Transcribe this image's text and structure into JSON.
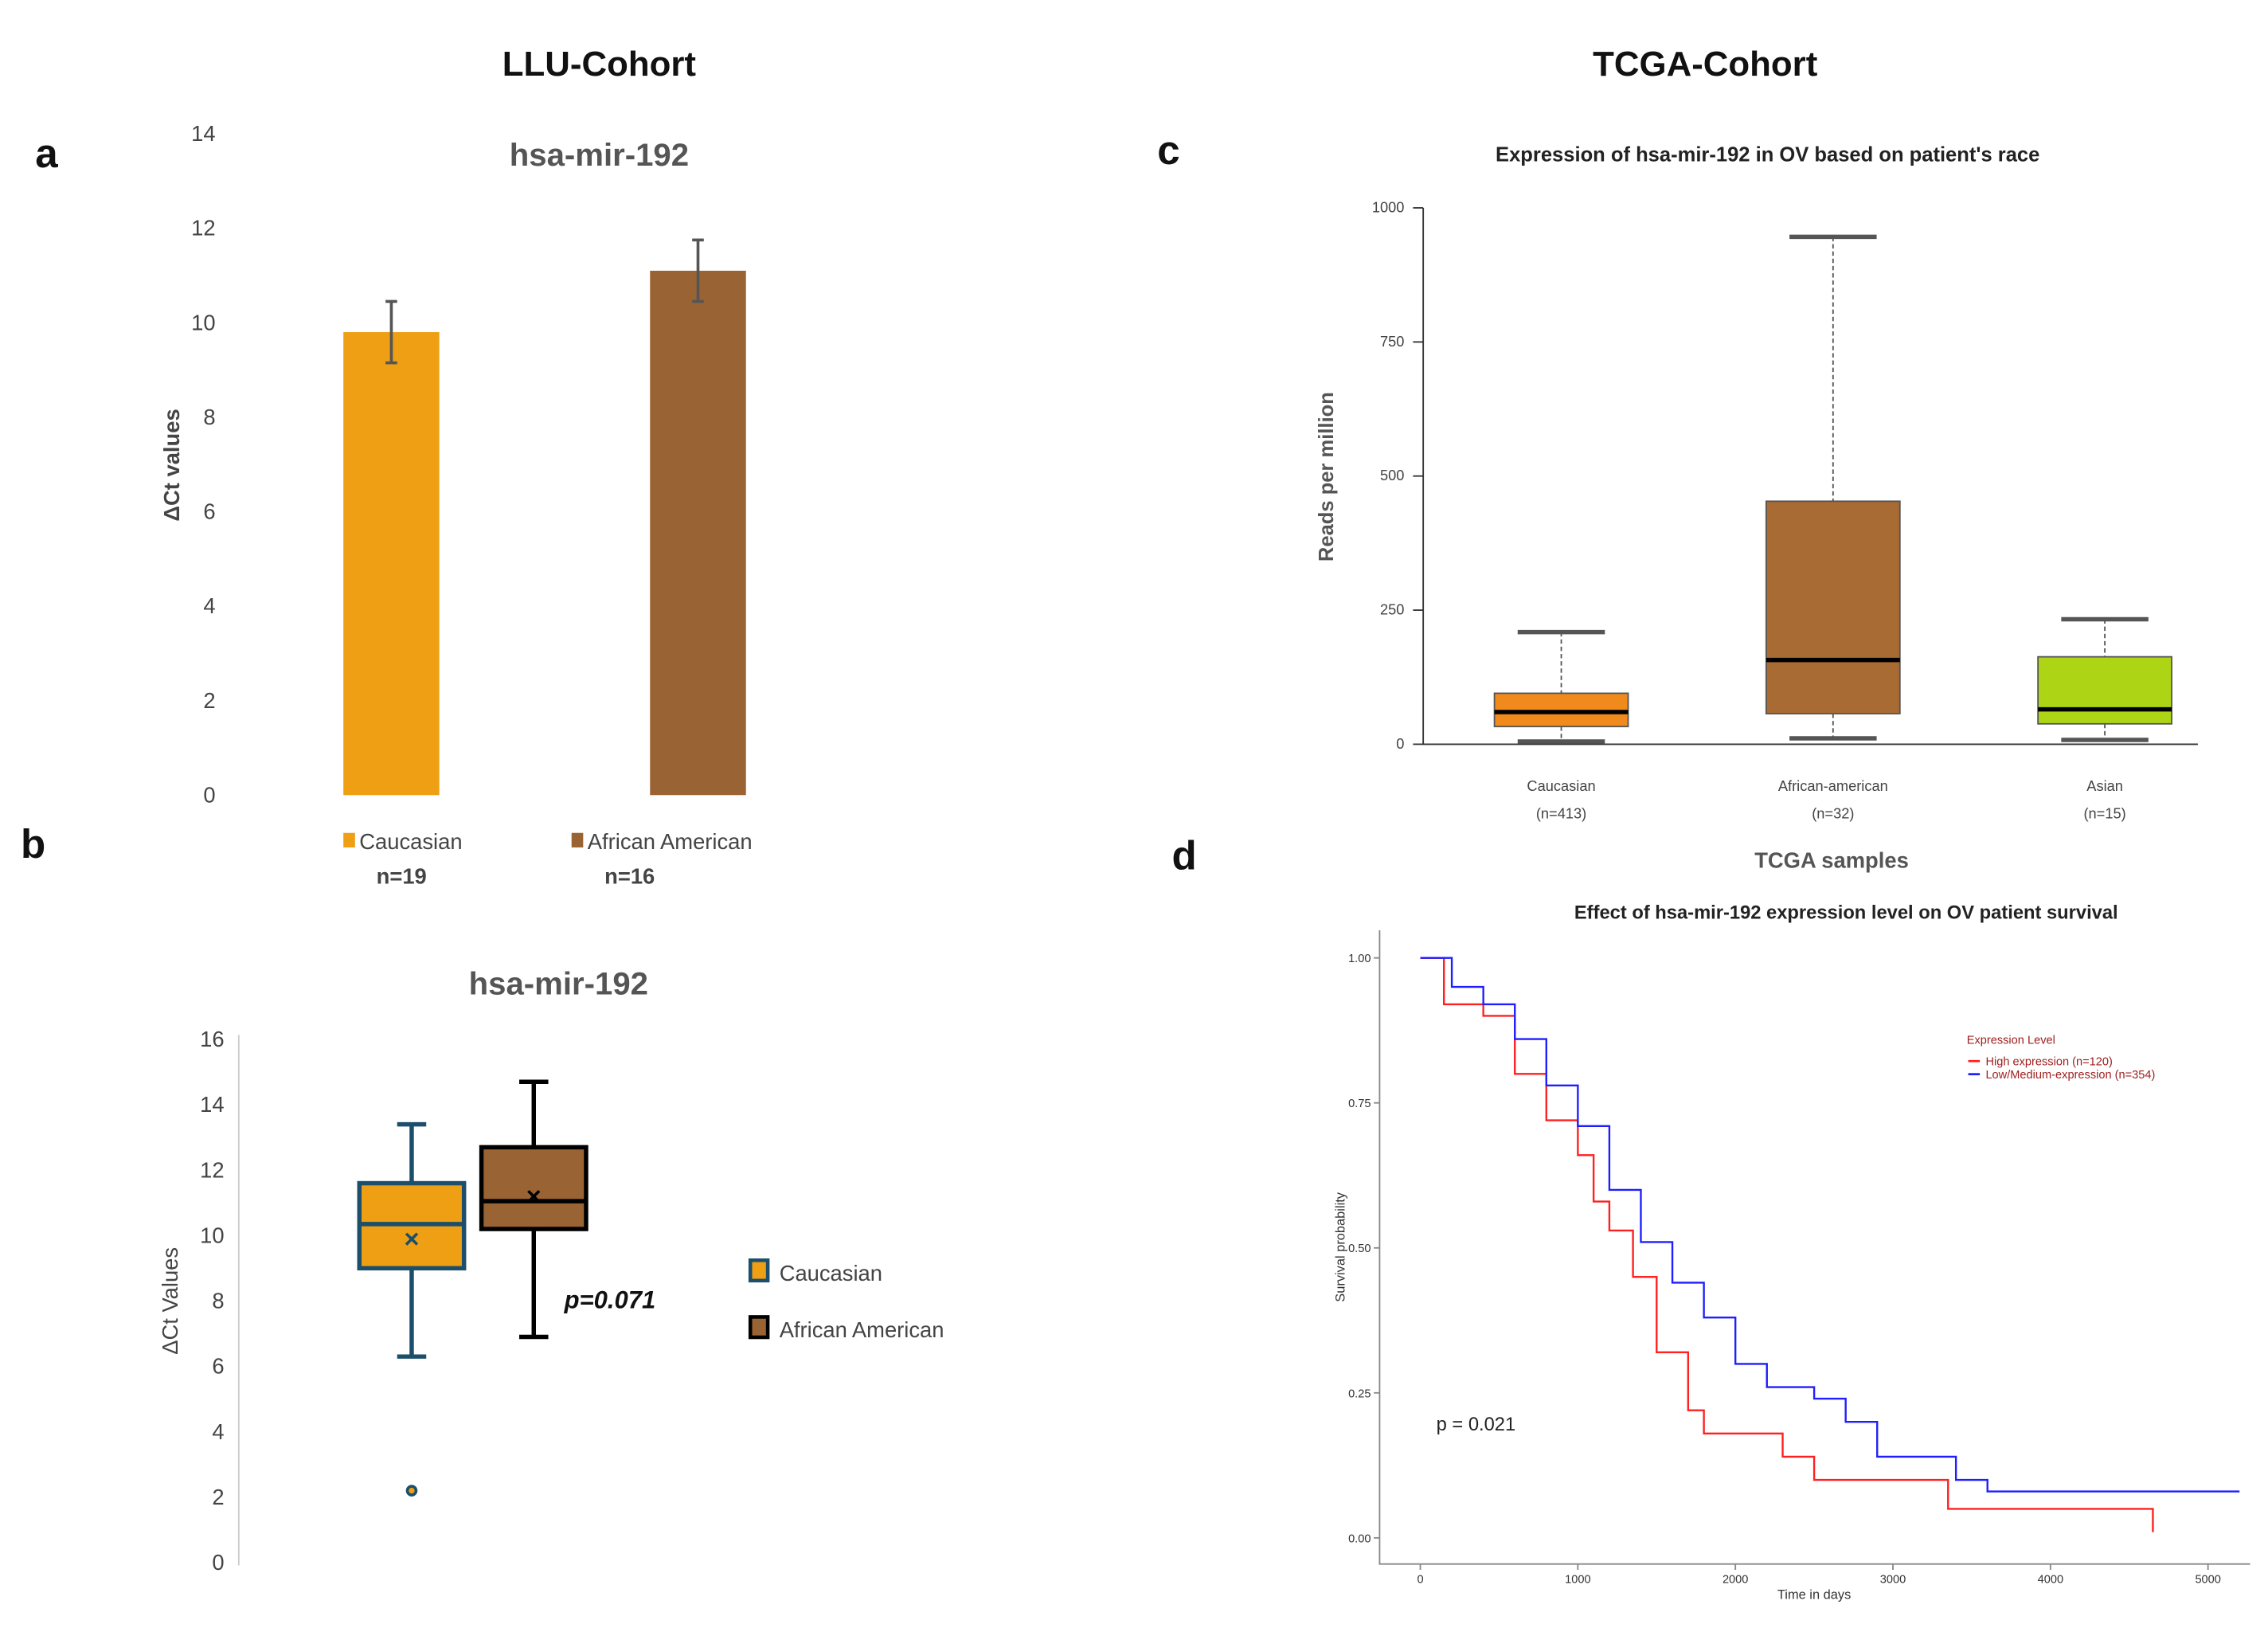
{
  "headers": {
    "left": "LLU-Cohort",
    "right": "TCGA-Cohort"
  },
  "panel_letters": {
    "a": "a",
    "b": "b",
    "c": "c",
    "d": "d"
  },
  "chart_data": [
    {
      "panel": "a",
      "type": "bar",
      "title": "hsa-mir-192",
      "ylabel": "ΔCt values",
      "ylim": [
        0,
        14
      ],
      "yticks": [
        0,
        2,
        4,
        6,
        8,
        10,
        12,
        14
      ],
      "categories": [
        "Caucasian",
        "African American"
      ],
      "values": [
        9.8,
        11.1
      ],
      "errors": [
        0.65,
        0.65
      ],
      "sample_sizes": [
        "n=19",
        "n=16"
      ],
      "colors": [
        "#EE9F14",
        "#9A6333"
      ],
      "grid": false,
      "legend": "bottom"
    },
    {
      "panel": "b",
      "type": "box",
      "title": "hsa-mir-192",
      "ylabel": "ΔCt Values",
      "ylim": [
        0,
        16
      ],
      "yticks": [
        0,
        2,
        4,
        6,
        8,
        10,
        12,
        14,
        16
      ],
      "series": [
        {
          "name": "Caucasian",
          "min": 6.3,
          "q1": 9.0,
          "median": 10.35,
          "q3": 11.6,
          "max": 13.4,
          "mean": 9.9,
          "outliers": [
            2.2
          ],
          "fill": "#EE9F14",
          "stroke": "#1B4F6B"
        },
        {
          "name": "African American",
          "min": 6.9,
          "q1": 10.2,
          "median": 11.05,
          "q3": 12.7,
          "max": 14.7,
          "mean": 11.2,
          "outliers": [],
          "fill": "#9A6333",
          "stroke": "#000000"
        }
      ],
      "annotation": "p=0.071",
      "grid": false,
      "legend": "right"
    },
    {
      "panel": "c",
      "type": "box",
      "title": "Expression of hsa-mir-192 in OV based on patient's race",
      "xlabel": "TCGA samples",
      "ylabel": "Reads per million",
      "ylim": [
        0,
        1000
      ],
      "yticks": [
        0,
        250,
        500,
        750,
        1000
      ],
      "series": [
        {
          "name": "Caucasian",
          "n": "(n=413)",
          "min": 5,
          "q1": 33,
          "median": 60,
          "q3": 95,
          "max": 209,
          "fill": "#F08A1C"
        },
        {
          "name": "African-american",
          "n": "(n=32)",
          "min": 11,
          "q1": 57,
          "median": 157,
          "q3": 453,
          "max": 946,
          "fill": "#A86B33"
        },
        {
          "name": "Asian",
          "n": "(n=15)",
          "min": 8,
          "q1": 38,
          "median": 65,
          "q3": 163,
          "max": 233,
          "fill": "#ADD516"
        }
      ],
      "grid": false
    },
    {
      "panel": "d",
      "type": "line",
      "title": "Effect of hsa-mir-192 expression level on OV patient survival",
      "xlabel": "Time in days",
      "ylabel": "Survival probability",
      "xlim": [
        0,
        5200
      ],
      "ylim": [
        0,
        1
      ],
      "xticks": [
        0,
        1000,
        2000,
        3000,
        4000,
        5000
      ],
      "yticks": [
        "0.00",
        "0.25",
        "0.50",
        "0.75",
        "1.00"
      ],
      "legend_title": "Expression Level",
      "legend": "top-right",
      "annotation": "p = 0.021",
      "series": [
        {
          "name": "High expression (n=120)",
          "color": "#FF2020",
          "x": [
            0,
            150,
            400,
            600,
            800,
            1000,
            1100,
            1200,
            1350,
            1500,
            1700,
            1800,
            2100,
            2300,
            2500,
            3300,
            3350,
            4650,
            4650
          ],
          "y": [
            1.0,
            0.92,
            0.9,
            0.8,
            0.72,
            0.66,
            0.58,
            0.53,
            0.45,
            0.32,
            0.22,
            0.18,
            0.18,
            0.14,
            0.1,
            0.1,
            0.05,
            0.05,
            0.01
          ]
        },
        {
          "name": "Low/Medium-expression (n=354)",
          "color": "#1E1EFF",
          "x": [
            0,
            200,
            400,
            600,
            800,
            1000,
            1200,
            1400,
            1600,
            1800,
            2000,
            2200,
            2500,
            2700,
            2900,
            3200,
            3400,
            3600,
            5200
          ],
          "y": [
            1.0,
            0.95,
            0.92,
            0.86,
            0.78,
            0.71,
            0.6,
            0.51,
            0.44,
            0.38,
            0.3,
            0.26,
            0.24,
            0.2,
            0.14,
            0.14,
            0.1,
            0.08,
            0.08
          ]
        }
      ]
    }
  ]
}
